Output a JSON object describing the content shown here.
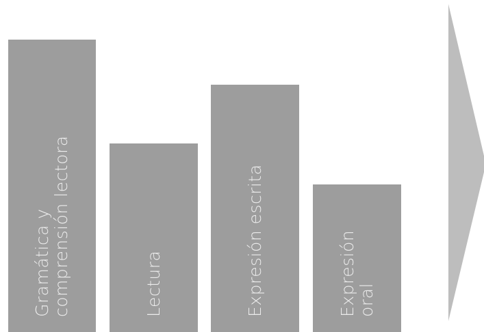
{
  "diagram": {
    "bars": [
      {
        "lines": [
          "Gramática y",
          "comprensión lectora"
        ]
      },
      {
        "lines": [
          "Lectura"
        ]
      },
      {
        "lines": [
          "Expresión escrita"
        ]
      },
      {
        "lines": [
          "Expresión",
          "oral"
        ]
      }
    ],
    "colors": {
      "bar": "#9d9d9d",
      "label": "#ececec",
      "arrow": "#bdbdbd"
    },
    "arrow_icon": "chevron-arrow-right"
  }
}
